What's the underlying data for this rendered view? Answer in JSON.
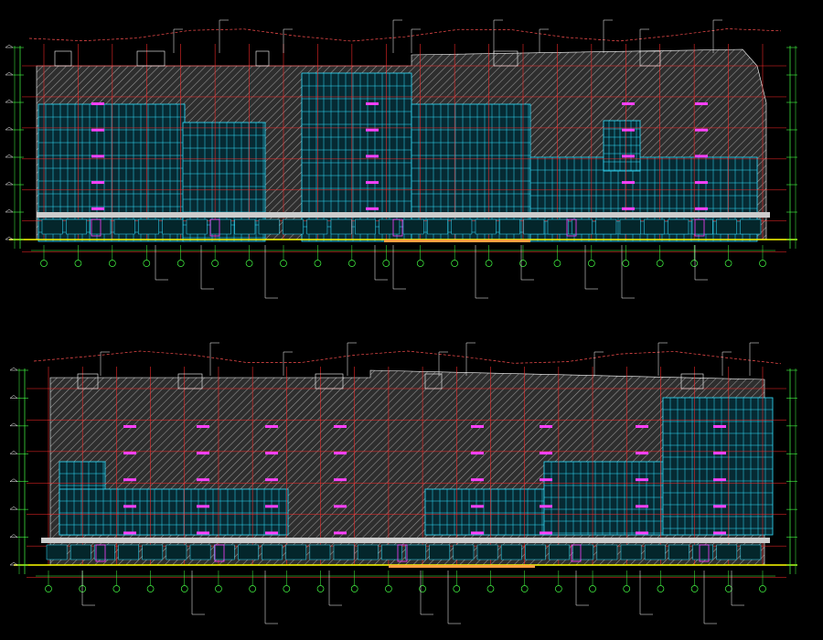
{
  "drawing": {
    "type": "CAD building elevation drawing",
    "background": "#000000",
    "elevations": [
      {
        "id": "upper",
        "grid_bubbles": 22,
        "floors": 6
      },
      {
        "id": "lower",
        "grid_bubbles": 22,
        "floors": 6
      }
    ]
  },
  "colors": {
    "background": "#000000",
    "glazing_grid": "#33e0ff",
    "grid_lines": "#ff2a2a",
    "hatch": "#d8d8d8",
    "wall_fill": "#3a3a3a",
    "outline": "#ffffff",
    "dims": "#44ff44",
    "ground_line": "#ffff00",
    "cloud_line": "#ff5050",
    "openings": "#ff40ff",
    "plinth": "#cccccc"
  },
  "icons": {
    "grid_bubble": "circle",
    "level_marker": "triangle"
  }
}
